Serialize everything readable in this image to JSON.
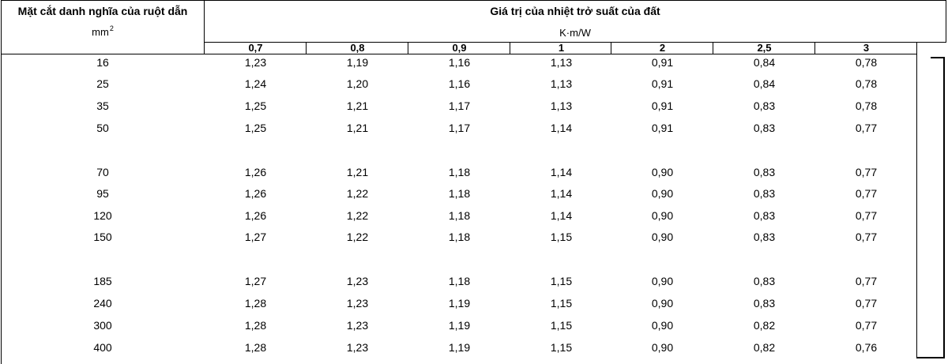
{
  "table": {
    "header_left_title": "Mặt cắt danh nghĩa của ruột dẫn",
    "header_left_unit": "mm",
    "header_left_unit_sup": "2",
    "header_right_title": "Giá trị của nhiệt trở suất của đất",
    "header_right_unit": "K·m/W",
    "columns": [
      "0,7",
      "0,8",
      "0,9",
      "1",
      "2",
      "2,5",
      "3"
    ],
    "rows": [
      {
        "section": "16",
        "values": [
          "1,23",
          "1,19",
          "1,16",
          "1,13",
          "0,91",
          "0,84",
          "0,78"
        ]
      },
      {
        "section": "25",
        "values": [
          "1,24",
          "1,20",
          "1,16",
          "1,13",
          "0,91",
          "0,84",
          "0,78"
        ]
      },
      {
        "section": "35",
        "values": [
          "1,25",
          "1,21",
          "1,17",
          "1,13",
          "0,91",
          "0,83",
          "0,78"
        ]
      },
      {
        "section": "50",
        "values": [
          "1,25",
          "1,21",
          "1,17",
          "1,14",
          "0,91",
          "0,83",
          "0,77"
        ]
      },
      {
        "section": "70",
        "values": [
          "1,26",
          "1,21",
          "1,18",
          "1,14",
          "0,90",
          "0,83",
          "0,77"
        ]
      },
      {
        "section": "95",
        "values": [
          "1,26",
          "1,22",
          "1,18",
          "1,14",
          "0,90",
          "0,83",
          "0,77"
        ]
      },
      {
        "section": "120",
        "values": [
          "1,26",
          "1,22",
          "1,18",
          "1,14",
          "0,90",
          "0,83",
          "0,77"
        ]
      },
      {
        "section": "150",
        "values": [
          "1,27",
          "1,22",
          "1,18",
          "1,15",
          "0,90",
          "0,83",
          "0,77"
        ]
      },
      {
        "section": "185",
        "values": [
          "1,27",
          "1,23",
          "1,18",
          "1,15",
          "0,90",
          "0,83",
          "0,77"
        ]
      },
      {
        "section": "240",
        "values": [
          "1,28",
          "1,23",
          "1,19",
          "1,15",
          "0,90",
          "0,83",
          "0,77"
        ]
      },
      {
        "section": "300",
        "values": [
          "1,28",
          "1,23",
          "1,19",
          "1,15",
          "0,90",
          "0,82",
          "0,77"
        ]
      },
      {
        "section": "400",
        "values": [
          "1,28",
          "1,23",
          "1,19",
          "1,15",
          "0,90",
          "0,82",
          "0,76"
        ]
      }
    ]
  }
}
